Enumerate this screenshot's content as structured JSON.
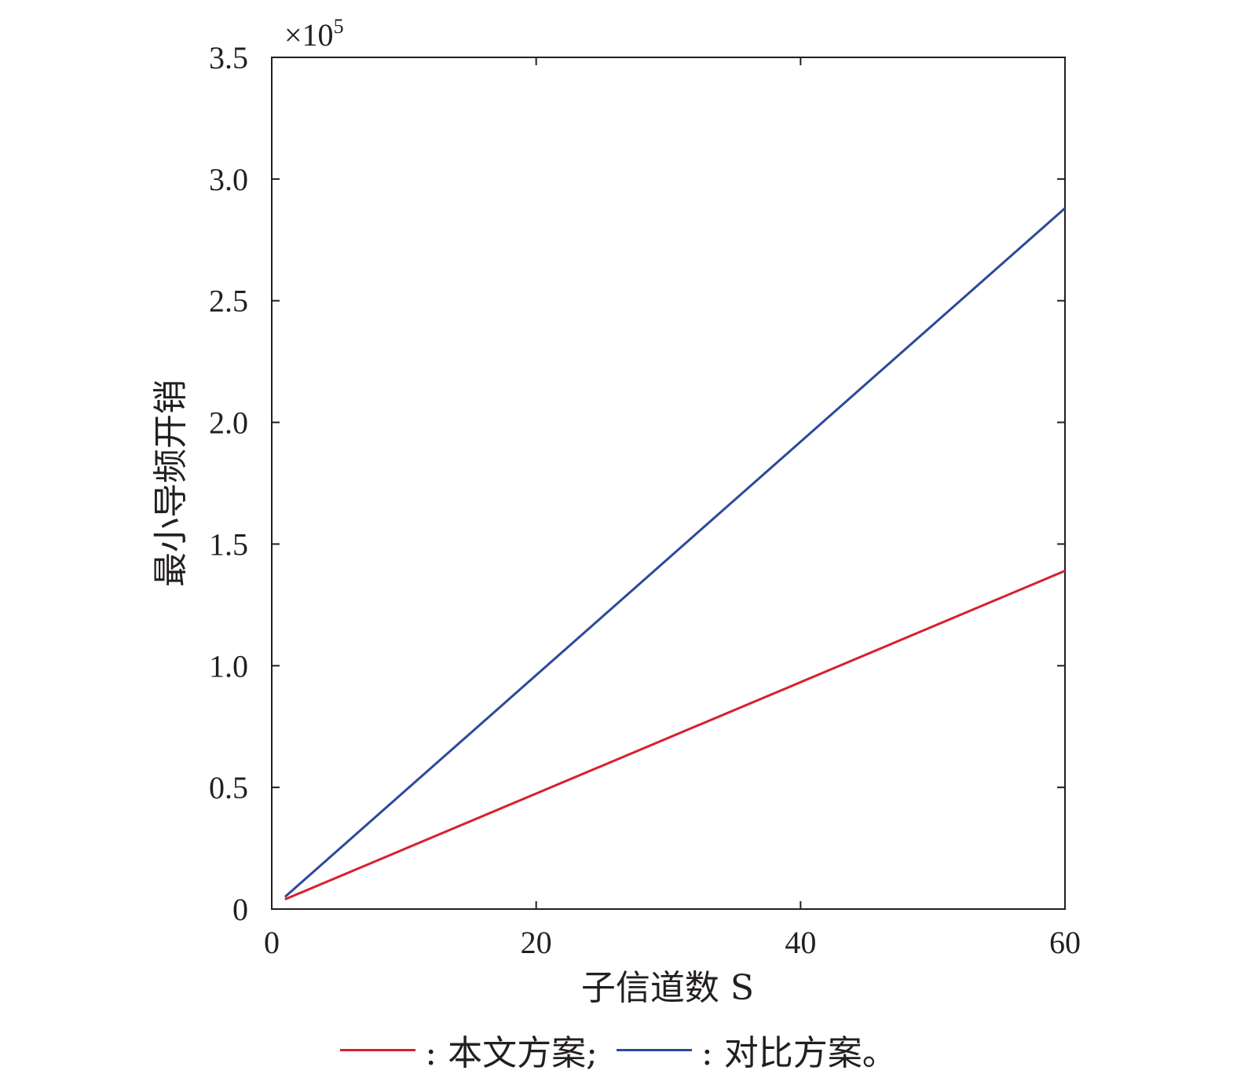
{
  "chart_data": {
    "type": "line",
    "xlabel": "子信道数 S",
    "ylabel": "最小导频开销",
    "y_multiplier": "×10",
    "y_multiplier_exp": "5",
    "xlim": [
      0,
      60
    ],
    "ylim": [
      0,
      3.5
    ],
    "xticks": [
      0,
      20,
      40,
      60
    ],
    "xtick_labels": [
      "0",
      "20",
      "40",
      "60"
    ],
    "yticks": [
      0,
      0.5,
      1.0,
      1.5,
      2.0,
      2.5,
      3.0,
      3.5
    ],
    "ytick_labels": [
      "0",
      "0.5",
      "1.0",
      "1.5",
      "2.0",
      "2.5",
      "3.0",
      "3.5"
    ],
    "grid": false,
    "legend_position": "bottom",
    "series": [
      {
        "name": "本文方案",
        "legend_label": ": 本文方案;",
        "color": "#d7202e",
        "x": [
          1,
          60
        ],
        "y": [
          0.04,
          1.39
        ]
      },
      {
        "name": "对比方案",
        "legend_label": ": 对比方案。",
        "color": "#2b4a9b",
        "x": [
          1,
          60
        ],
        "y": [
          0.05,
          2.88
        ]
      }
    ]
  }
}
